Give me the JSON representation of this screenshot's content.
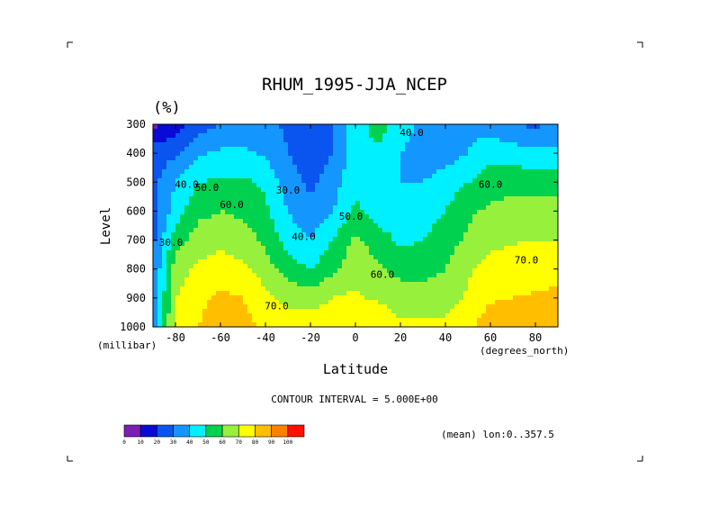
{
  "chart_data": {
    "type": "contour",
    "title": "RHUM_1995-JJA_NCEP",
    "units": "(%)",
    "xlabel": "Latitude",
    "x_unit_label": "(degrees_north)",
    "ylabel": "Level",
    "y_unit_label": "(millibar)",
    "xlim": [
      -90,
      90
    ],
    "ylim": [
      1000,
      300
    ],
    "x_ticks": [
      "-80",
      "-60",
      "-40",
      "-20",
      "0",
      "20",
      "40",
      "60",
      "80"
    ],
    "x_tick_values": [
      -80,
      -60,
      -40,
      -20,
      0,
      20,
      40,
      60,
      80
    ],
    "y_ticks": [
      "300",
      "400",
      "500",
      "600",
      "700",
      "800",
      "900",
      "1000"
    ],
    "y_tick_values": [
      300,
      400,
      500,
      600,
      700,
      800,
      900,
      1000
    ],
    "contour_interval_text": "CONTOUR INTERVAL = 5.000E+00",
    "footnote": "(mean) lon:0..357.5",
    "contour_labels": [
      {
        "text": "40.0",
        "lat": -75,
        "lev": 520
      },
      {
        "text": "50.0",
        "lat": -66,
        "lev": 530
      },
      {
        "text": "60.0",
        "lat": -55,
        "lev": 590
      },
      {
        "text": "30.0",
        "lat": -82,
        "lev": 720
      },
      {
        "text": "30.0",
        "lat": -30,
        "lev": 540
      },
      {
        "text": "40.0",
        "lat": -23,
        "lev": 700
      },
      {
        "text": "50.0",
        "lat": -2,
        "lev": 630
      },
      {
        "text": "60.0",
        "lat": 12,
        "lev": 830
      },
      {
        "text": "70.0",
        "lat": -35,
        "lev": 940
      },
      {
        "text": "40.0",
        "lat": 25,
        "lev": 340
      },
      {
        "text": "60.0",
        "lat": 60,
        "lev": 520
      },
      {
        "text": "70.0",
        "lat": 76,
        "lev": 780
      }
    ],
    "field": {
      "lat": [
        -90,
        -80,
        -70,
        -60,
        -50,
        -40,
        -30,
        -20,
        -10,
        0,
        10,
        20,
        30,
        40,
        50,
        60,
        70,
        80,
        90
      ],
      "lev": [
        300,
        400,
        500,
        600,
        700,
        800,
        900,
        1000
      ],
      "values": [
        [
          8,
          15,
          25,
          30,
          32,
          33,
          28,
          23,
          30,
          45,
          55,
          45,
          38,
          38,
          38,
          35,
          30,
          28,
          32
        ],
        [
          25,
          28,
          38,
          42,
          42,
          38,
          30,
          22,
          30,
          45,
          48,
          40,
          33,
          35,
          40,
          47,
          45,
          42,
          42
        ],
        [
          27,
          40,
          50,
          52,
          52,
          48,
          35,
          28,
          35,
          48,
          45,
          40,
          40,
          45,
          50,
          55,
          57,
          57,
          57
        ],
        [
          27,
          45,
          57,
          60,
          58,
          52,
          40,
          33,
          40,
          52,
          45,
          43,
          45,
          50,
          58,
          62,
          64,
          64,
          64
        ],
        [
          27,
          55,
          65,
          67,
          65,
          58,
          45,
          40,
          50,
          62,
          55,
          48,
          50,
          55,
          62,
          67,
          69,
          70,
          70
        ],
        [
          30,
          65,
          72,
          75,
          72,
          65,
          55,
          50,
          58,
          67,
          62,
          57,
          57,
          60,
          68,
          74,
          75,
          76,
          77
        ],
        [
          32,
          70,
          78,
          82,
          80,
          73,
          67,
          65,
          70,
          72,
          68,
          64,
          64,
          65,
          72,
          79,
          80,
          81,
          82
        ],
        [
          35,
          72,
          80,
          84,
          83,
          78,
          76,
          76,
          76,
          78,
          80,
          72,
          72,
          73,
          78,
          85,
          86,
          87,
          88
        ]
      ]
    },
    "colorbar": {
      "levels": [
        "0",
        "10",
        "20",
        "30",
        "40",
        "50",
        "60",
        "70",
        "80",
        "90",
        "100"
      ],
      "colors": [
        "#7a1eb4",
        "#0a0ad6",
        "#0a55f0",
        "#1496ff",
        "#00f0ff",
        "#00d250",
        "#96f03c",
        "#ffff00",
        "#ffbe00",
        "#ff8000",
        "#ff1000"
      ]
    },
    "legend_position": "bottom-left",
    "grid": false
  }
}
